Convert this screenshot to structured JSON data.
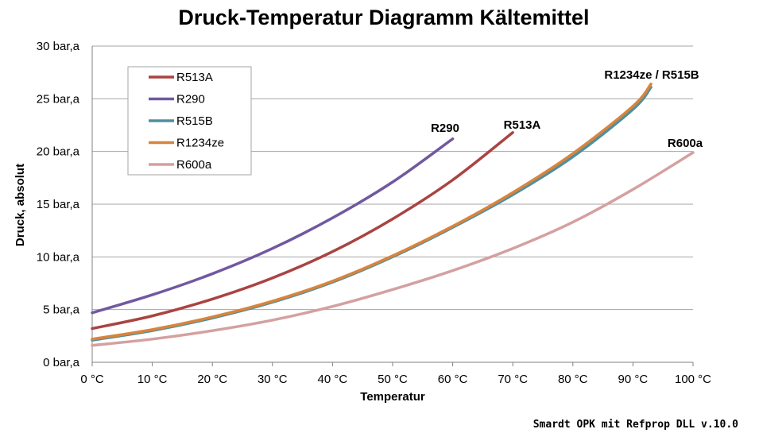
{
  "chart_data": {
    "type": "line",
    "title": "Druck-Temperatur Diagramm Kältemittel",
    "xlabel": "Temperatur",
    "ylabel": "Druck, absolut",
    "xlim": [
      0,
      100
    ],
    "ylim": [
      0,
      30
    ],
    "x_ticks": [
      "0 °C",
      "10 °C",
      "20 °C",
      "30 °C",
      "40 °C",
      "50 °C",
      "60 °C",
      "70 °C",
      "80 °C",
      "90 °C",
      "100 °C"
    ],
    "y_ticks": [
      "0 bar,a",
      "5 bar,a",
      "10 bar,a",
      "15 bar,a",
      "20 bar,a",
      "25 bar,a",
      "30 bar,a"
    ],
    "grid": true,
    "legend_position": "top-left",
    "series": [
      {
        "name": "R513A",
        "color": "#a94442",
        "x": [
          0,
          10,
          20,
          30,
          40,
          50,
          60,
          70
        ],
        "y": [
          3.2,
          4.4,
          6.0,
          8.0,
          10.5,
          13.6,
          17.3,
          21.8
        ]
      },
      {
        "name": "R290",
        "color": "#7158a0",
        "x": [
          0,
          10,
          20,
          30,
          40,
          50,
          60
        ],
        "y": [
          4.7,
          6.4,
          8.4,
          10.8,
          13.7,
          17.1,
          21.2
        ]
      },
      {
        "name": "R515B",
        "color": "#4e8fa0",
        "x": [
          0,
          10,
          20,
          30,
          40,
          50,
          60,
          70,
          80,
          90,
          93
        ],
        "y": [
          2.1,
          3.0,
          4.2,
          5.7,
          7.6,
          10.0,
          12.8,
          15.9,
          19.5,
          24.0,
          26.1
        ]
      },
      {
        "name": "R1234ze",
        "color": "#d9843c",
        "x": [
          0,
          10,
          20,
          30,
          40,
          50,
          60,
          70,
          80,
          90,
          93
        ],
        "y": [
          2.2,
          3.1,
          4.3,
          5.8,
          7.7,
          10.1,
          12.9,
          16.1,
          19.8,
          24.3,
          26.4
        ]
      },
      {
        "name": "R600a",
        "color": "#d4a0a0",
        "x": [
          0,
          10,
          20,
          30,
          40,
          50,
          60,
          70,
          80,
          90,
          100
        ],
        "y": [
          1.6,
          2.2,
          3.0,
          4.0,
          5.3,
          6.9,
          8.7,
          10.8,
          13.3,
          16.4,
          19.9
        ]
      }
    ],
    "annotations": [
      "R290",
      "R513A",
      "R1234ze / R515B",
      "R600a"
    ]
  },
  "footer": "Smardt OPK mit Refprop  DLL v.10.0"
}
